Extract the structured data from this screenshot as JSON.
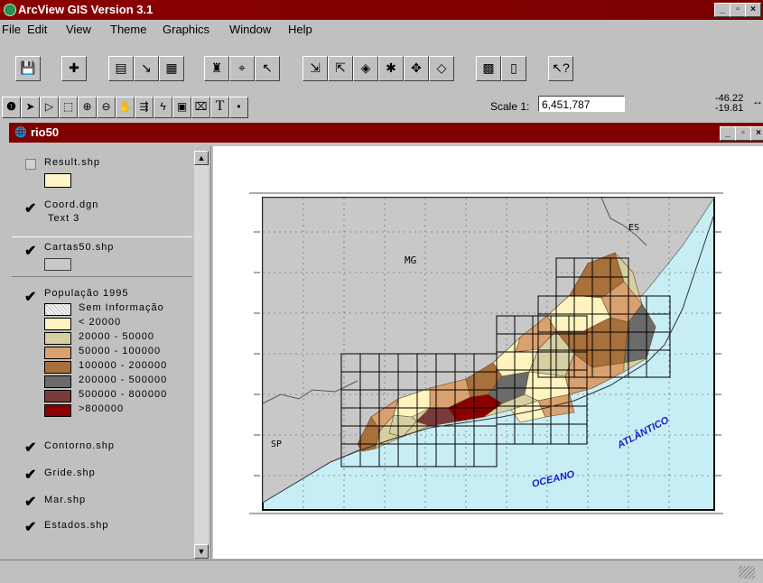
{
  "app": {
    "title": "ArcView GIS Version 3.1"
  },
  "menu": [
    "File",
    "Edit",
    "View",
    "Theme",
    "Graphics",
    "Window",
    "Help"
  ],
  "scale": {
    "label": "Scale 1:",
    "value": "6,451,787"
  },
  "coords": {
    "x": "-46.22",
    "y": "-19.81"
  },
  "doc": {
    "title": "rio50"
  },
  "toc": {
    "result": {
      "name": "Result.shp"
    },
    "coord": {
      "name": "Coord.dgn",
      "sub": "Text 3"
    },
    "cartas": {
      "name": "Cartas50.shp"
    },
    "populacao": {
      "name": "População 1995",
      "classes": [
        {
          "label": "Sem Informação",
          "color": "#f0f0f0"
        },
        {
          "label": "< 20000",
          "color": "#fff3c0"
        },
        {
          "label": "20000 - 50000",
          "color": "#d6cfa2"
        },
        {
          "label": "50000 - 100000",
          "color": "#d9a070"
        },
        {
          "label": "100000 - 200000",
          "color": "#a8703a"
        },
        {
          "label": "200000 - 500000",
          "color": "#6b6b6b"
        },
        {
          "label": "500000 - 800000",
          "color": "#7a3a3a"
        },
        {
          "label": ">800000",
          "color": "#8b0000"
        }
      ]
    },
    "contorno": {
      "name": "Contorno.shp"
    },
    "gride": {
      "name": "Gride.shp"
    },
    "mar": {
      "name": "Mar.shp"
    },
    "estados": {
      "name": "Estados.shp"
    }
  },
  "map": {
    "labels": {
      "mg": "MG",
      "es": "ES",
      "sp": "SP",
      "oceano": "OCEANO",
      "atlantico": "ATLÂNTICO"
    },
    "colors": {
      "sea": "#c8eef5",
      "land": "#c8c8c8"
    }
  }
}
